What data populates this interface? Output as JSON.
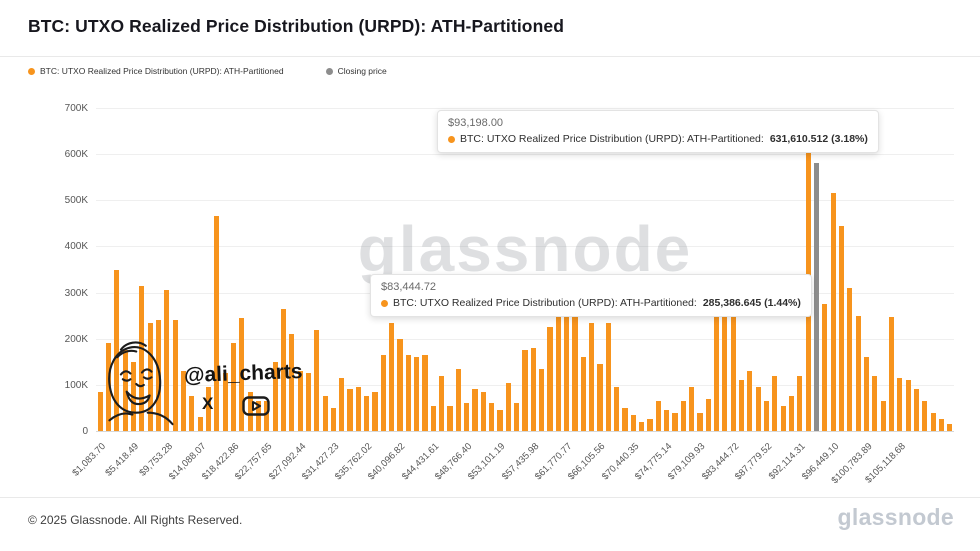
{
  "header": {
    "title": "BTC: UTXO Realized Price Distribution (URPD): ATH-Partitioned"
  },
  "legend": [
    {
      "label": "BTC: UTXO Realized Price Distribution (URPD): ATH-Partitioned",
      "color": "#f7941d"
    },
    {
      "label": "Closing price",
      "color": "#8d8d8d"
    }
  ],
  "tooltips": [
    {
      "price": "$93,198.00",
      "label": "BTC: UTXO Realized Price Distribution (URPD): ATH-Partitioned:",
      "value": "631,610.512 (3.18%)"
    },
    {
      "price": "$83,444.72",
      "label": "BTC: UTXO Realized Price Distribution (URPD): ATH-Partitioned:",
      "value": "285,386.645 (1.44%)"
    }
  ],
  "watermark": "glassnode",
  "annotation": {
    "handle": "@ali_charts"
  },
  "footer": {
    "copyright": "© 2025 Glassnode. All Rights Reserved.",
    "brand": "glassnode"
  },
  "chart_data": {
    "type": "bar",
    "title": "BTC: UTXO Realized Price Distribution (URPD): ATH-Partitioned",
    "xlabel": "",
    "ylabel": "",
    "ylim": [
      0,
      700000
    ],
    "grid": true,
    "legend_position": "top-left",
    "bar_color": "#f7941d",
    "closing_price_color": "#8d8d8d",
    "closing_price_bar_index": 86,
    "tick_every": 4,
    "y_ticks": [
      "0",
      "100K",
      "200K",
      "300K",
      "400K",
      "500K",
      "600K",
      "700K"
    ],
    "x_tick_labels": [
      "$1,083.70",
      "$5,418.49",
      "$9,753.28",
      "$14,088.07",
      "$18,422.86",
      "$22,757.65",
      "$27,092.44",
      "$31,427.23",
      "$35,762.02",
      "$40,096.82",
      "$44,431.61",
      "$48,766.40",
      "$53,101.19",
      "$57,435.98",
      "$61,770.77",
      "$66,105.56",
      "$70,440.35",
      "$74,775.14",
      "$79,109.93",
      "$83,444.72",
      "$87,779.52",
      "$92,114.31",
      "$96,449.10",
      "$100,783.89",
      "$105,118.68"
    ],
    "values": [
      85000,
      190000,
      350000,
      175000,
      150000,
      315000,
      235000,
      240000,
      305000,
      240000,
      130000,
      75000,
      30000,
      95000,
      465000,
      125000,
      190000,
      245000,
      85000,
      65000,
      65000,
      150000,
      265000,
      210000,
      130000,
      125000,
      220000,
      75000,
      50000,
      115000,
      90000,
      95000,
      75000,
      85000,
      165000,
      235000,
      200000,
      165000,
      160000,
      165000,
      55000,
      120000,
      55000,
      135000,
      60000,
      90000,
      85000,
      60000,
      45000,
      105000,
      60000,
      175000,
      180000,
      135000,
      225000,
      260000,
      290000,
      295000,
      160000,
      235000,
      145000,
      235000,
      95000,
      50000,
      35000,
      20000,
      25000,
      65000,
      45000,
      40000,
      65000,
      95000,
      40000,
      70000,
      265000,
      255000,
      285386.645,
      110000,
      130000,
      95000,
      65000,
      120000,
      55000,
      75000,
      120000,
      631610.512,
      580000,
      275000,
      515000,
      445000,
      310000,
      250000,
      160000,
      120000,
      65000,
      248000,
      115000,
      110000,
      90000,
      65000,
      40000,
      25000,
      15000
    ]
  }
}
